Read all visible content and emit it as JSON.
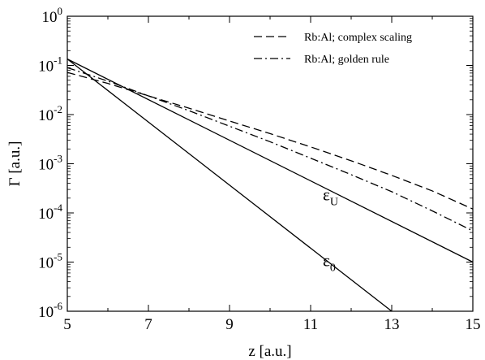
{
  "chart_data": {
    "type": "line",
    "xlabel": "z [a.u.]",
    "ylabel": "Γ [a.u.]",
    "xlim": [
      5,
      15
    ],
    "ylim": [
      1e-06,
      1
    ],
    "y_scale": "log",
    "grid": false,
    "legend_position": "top-right",
    "x_ticks": [
      {
        "value": 5,
        "label": "5"
      },
      {
        "value": 7,
        "label": "7"
      },
      {
        "value": 9,
        "label": "9"
      },
      {
        "value": 11,
        "label": "11"
      },
      {
        "value": 13,
        "label": "13"
      },
      {
        "value": 15,
        "label": "15"
      }
    ],
    "y_ticks": [
      {
        "value": 1,
        "base": "10",
        "exp": "0"
      },
      {
        "value": 0.1,
        "base": "10",
        "exp": "-1"
      },
      {
        "value": 0.01,
        "base": "10",
        "exp": "-2"
      },
      {
        "value": 0.001,
        "base": "10",
        "exp": "-3"
      },
      {
        "value": 0.0001,
        "base": "10",
        "exp": "-4"
      },
      {
        "value": 1e-05,
        "base": "10",
        "exp": "-5"
      },
      {
        "value": 1e-06,
        "base": "10",
        "exp": "-6"
      }
    ],
    "series": [
      {
        "name": "Rb:Al; complex scaling",
        "line_style": "dashed",
        "x": [
          5,
          6,
          7,
          8,
          9,
          10,
          11,
          12,
          13,
          14,
          15
        ],
        "y": [
          0.072,
          0.043,
          0.024,
          0.0135,
          0.0074,
          0.0041,
          0.0022,
          0.00115,
          0.00058,
          0.00028,
          0.00012
        ]
      },
      {
        "name": "Rb:Al; golden rule",
        "line_style": "dashdot",
        "x": [
          5,
          6,
          7,
          8,
          9,
          10,
          11,
          12,
          13,
          14,
          15
        ],
        "y": [
          0.09,
          0.048,
          0.024,
          0.012,
          0.0058,
          0.0028,
          0.0013,
          0.0006,
          0.00027,
          0.00011,
          4.3e-05
        ]
      },
      {
        "label": "ε_U",
        "line_style": "solid",
        "x": [
          5,
          15
        ],
        "y": [
          0.135,
          1e-05
        ]
      },
      {
        "label": "ε_0",
        "line_style": "solid",
        "x": [
          5,
          13
        ],
        "y": [
          0.135,
          1e-06
        ]
      }
    ],
    "annotations": [
      {
        "base": "ε",
        "sub": "U",
        "x": 11.3,
        "y": 0.00018
      },
      {
        "base": "ε",
        "sub": "0",
        "x": 11.3,
        "y": 8.2e-06
      }
    ]
  }
}
